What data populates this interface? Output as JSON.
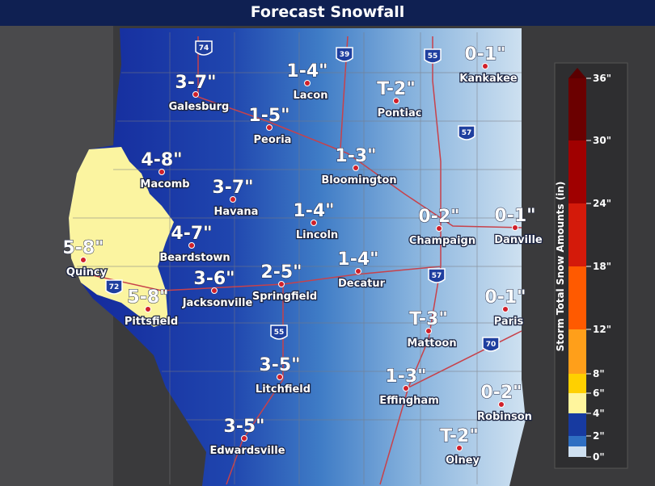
{
  "title": "Forecast Snowfall",
  "cities": [
    {
      "name": "Kankakee",
      "amount": "0-1\""
    },
    {
      "name": "Lacon",
      "amount": "1-4\""
    },
    {
      "name": "Pontiac",
      "amount": "T-2\""
    },
    {
      "name": "Galesburg",
      "amount": "3-7\""
    },
    {
      "name": "Peoria",
      "amount": "1-5\""
    },
    {
      "name": "Macomb",
      "amount": "4-8\""
    },
    {
      "name": "Bloomington",
      "amount": "1-3\""
    },
    {
      "name": "Havana",
      "amount": "3-7\""
    },
    {
      "name": "Lincoln",
      "amount": "1-4\""
    },
    {
      "name": "Champaign",
      "amount": "0-2\""
    },
    {
      "name": "Danville",
      "amount": "0-1\""
    },
    {
      "name": "Quincy",
      "amount": "5-8\""
    },
    {
      "name": "Beardstown",
      "amount": "4-7\""
    },
    {
      "name": "Decatur",
      "amount": "1-4\""
    },
    {
      "name": "Jacksonville",
      "amount": "3-6\""
    },
    {
      "name": "Springfield",
      "amount": "2-5\""
    },
    {
      "name": "Pittsfield",
      "amount": "5-8\""
    },
    {
      "name": "Paris",
      "amount": "0-1\""
    },
    {
      "name": "Mattoon",
      "amount": "T-3\""
    },
    {
      "name": "Litchfield",
      "amount": "3-5\""
    },
    {
      "name": "Effingham",
      "amount": "1-3\""
    },
    {
      "name": "Robinson",
      "amount": "0-2\""
    },
    {
      "name": "Edwardsville",
      "amount": "3-5\""
    },
    {
      "name": "Olney",
      "amount": "T-2\""
    }
  ],
  "interstates": [
    "74",
    "39",
    "55",
    "57",
    "72",
    "57",
    "55",
    "70"
  ],
  "legend": {
    "title": "Storm Total Snow Amounts (in)",
    "ticks": [
      "36\"",
      "30\"",
      "24\"",
      "18\"",
      "12\"",
      "8\"",
      "6\"",
      "4\"",
      "2\"",
      "0\""
    ]
  }
}
